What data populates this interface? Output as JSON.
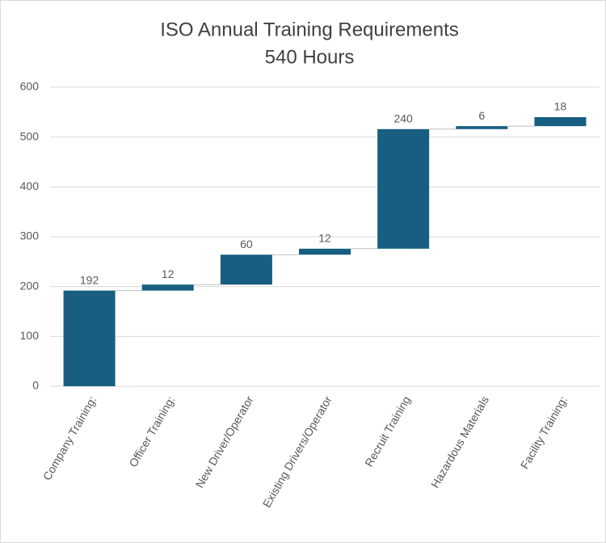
{
  "chart_data": {
    "type": "waterfall",
    "title": "ISO Annual Training Requirements",
    "subtitle": "540 Hours",
    "categories": [
      "Company Training:",
      "Officer Training:",
      "New Driver/Operator",
      "Existing Drivers/Operator",
      "Recruit Training",
      "Hazardous Materials",
      "Facility Training:"
    ],
    "values": [
      192,
      12,
      60,
      12,
      240,
      6,
      18
    ],
    "color": "#175e80",
    "ylim": [
      0,
      600
    ],
    "yticks": [
      0,
      100,
      200,
      300,
      400,
      500,
      600
    ],
    "grid": true
  }
}
